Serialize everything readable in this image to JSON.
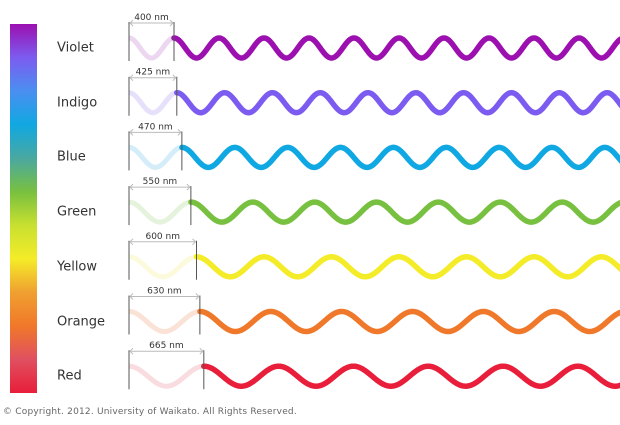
{
  "rows": [
    {
      "name": "Violet",
      "wavelength_nm": 400,
      "wavelength_label": "400 nm",
      "color": "#9c10b0",
      "faint_color": "#ecd6f0"
    },
    {
      "name": "Indigo",
      "wavelength_nm": 425,
      "wavelength_label": "425 nm",
      "color": "#7c5cf0",
      "faint_color": "#e6e0fb"
    },
    {
      "name": "Blue",
      "wavelength_nm": 470,
      "wavelength_label": "470 nm",
      "color": "#10a8e2",
      "faint_color": "#d4edf8"
    },
    {
      "name": "Green",
      "wavelength_nm": 550,
      "wavelength_label": "550 nm",
      "color": "#78c040",
      "faint_color": "#e6f3dc"
    },
    {
      "name": "Yellow",
      "wavelength_nm": 600,
      "wavelength_label": "600 nm",
      "color": "#f4ec28",
      "faint_color": "#fcfadc"
    },
    {
      "name": "Orange",
      "wavelength_nm": 630,
      "wavelength_label": "630 nm",
      "color": "#f0782a",
      "faint_color": "#fbe2d6"
    },
    {
      "name": "Red",
      "wavelength_nm": 665,
      "wavelength_label": "665 nm",
      "color": "#e81e3a",
      "faint_color": "#f9dcdf"
    }
  ],
  "spectrum_gradient": [
    "#9c10b0",
    "#7c5cf0",
    "#4a8ff0",
    "#10a8e2",
    "#4aa8a0",
    "#78c040",
    "#c8e030",
    "#f4ec28",
    "#f0a030",
    "#f0782a",
    "#e05060",
    "#e81e3a"
  ],
  "copyright": "© Copyright. 2012. University of Waikato. All Rights Reserved."
}
